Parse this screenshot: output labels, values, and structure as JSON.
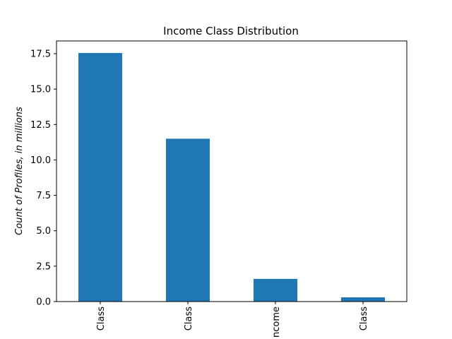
{
  "chart_data": {
    "type": "bar",
    "title": "Income Class Distribution",
    "xlabel": "",
    "ylabel": "Count of Profiles, in millions",
    "categories": [
      "Class",
      "Class",
      "ncome",
      "Class"
    ],
    "values": [
      17.55,
      11.5,
      1.6,
      0.3
    ],
    "ylim": [
      0,
      18.4
    ],
    "yticks": [
      "0.0",
      "2.5",
      "5.0",
      "7.5",
      "10.0",
      "12.5",
      "15.0",
      "17.5"
    ],
    "ytick_values": [
      0,
      2.5,
      5.0,
      7.5,
      10.0,
      12.5,
      15.0,
      17.5
    ],
    "bar_color": "#1f77b4",
    "grid": false,
    "legend": "none",
    "xtick_rotation": "vertical"
  }
}
